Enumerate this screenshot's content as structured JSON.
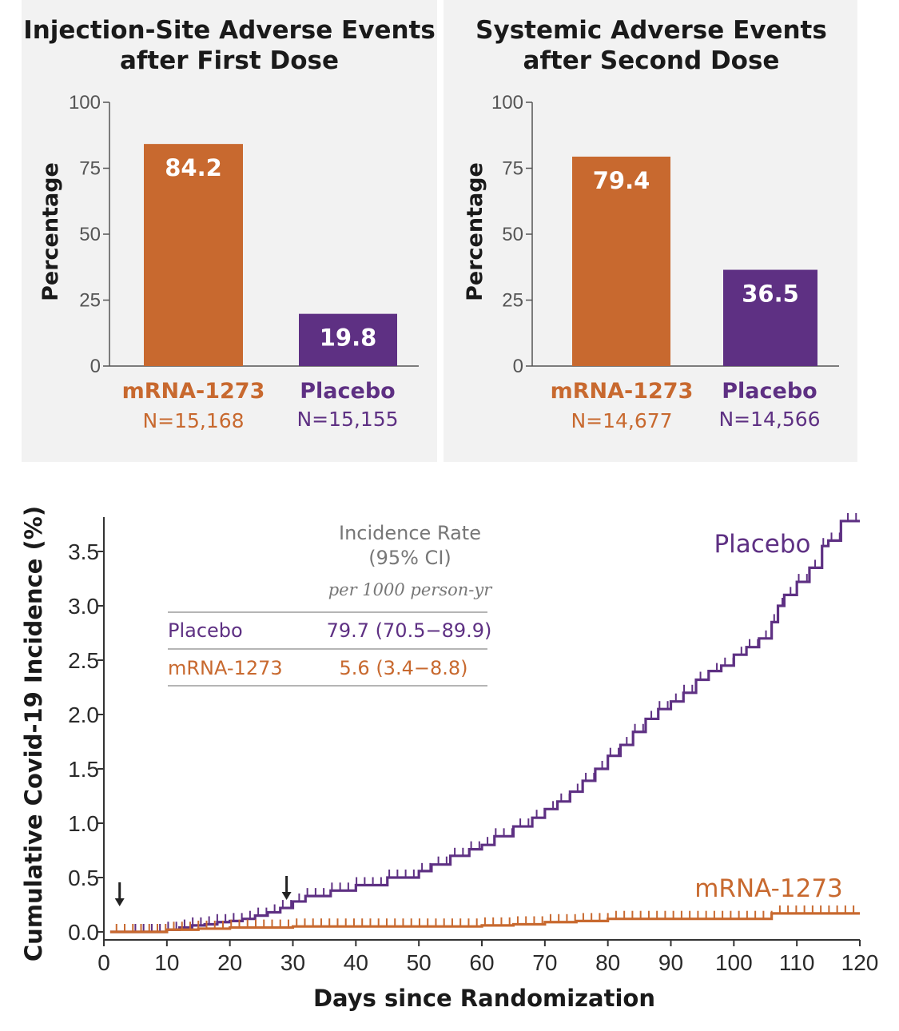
{
  "colors": {
    "mrna": "#c8692f",
    "placebo": "#5e3083",
    "panel_bg": "#f2f2f2",
    "axis": "#555555"
  },
  "chart_data": [
    {
      "type": "bar",
      "title": "Injection-Site Adverse Events after First Dose",
      "title_lines": [
        "Injection-Site Adverse Events",
        "after First Dose"
      ],
      "ylabel": "Percentage",
      "ylim": [
        0,
        100
      ],
      "yticks": [
        "100",
        "75",
        "50",
        "25",
        "0"
      ],
      "categories": [
        "mRNA-1273",
        "Placebo"
      ],
      "values": [
        84.2,
        19.8
      ],
      "value_labels": [
        "84.2",
        "19.8"
      ],
      "n_labels": [
        "N=15,168",
        "N=15,155"
      ]
    },
    {
      "type": "bar",
      "title": "Systemic Adverse Events after Second Dose",
      "title_lines": [
        "Systemic Adverse Events",
        "after Second Dose"
      ],
      "ylabel": "Percentage",
      "ylim": [
        0,
        100
      ],
      "yticks": [
        "100",
        "75",
        "50",
        "25",
        "0"
      ],
      "categories": [
        "mRNA-1273",
        "Placebo"
      ],
      "values": [
        79.4,
        36.5
      ],
      "value_labels": [
        "79.4",
        "36.5"
      ],
      "n_labels": [
        "N=14,677",
        "N=14,566"
      ]
    },
    {
      "type": "line",
      "ylabel": "Cumulative Covid-19 Incidence (%)",
      "xlabel": "Days since Randomization",
      "xlim": [
        0,
        120
      ],
      "ylim": [
        0,
        3.85
      ],
      "xticks": [
        "0",
        "10",
        "20",
        "30",
        "40",
        "50",
        "60",
        "70",
        "80",
        "90",
        "100",
        "110",
        "120"
      ],
      "yticks": [
        "0.0",
        "0.5",
        "1.0",
        "1.5",
        "2.0",
        "2.5",
        "3.0",
        "3.5"
      ],
      "annotations": [
        {
          "type": "arrow",
          "x": 2.5,
          "label": ""
        },
        {
          "type": "arrow",
          "x": 29,
          "label": ""
        }
      ],
      "series": [
        {
          "name": "Placebo",
          "x": [
            1,
            8,
            10,
            12,
            14,
            16,
            18,
            20,
            22,
            24,
            26,
            28,
            30,
            32,
            36,
            40,
            45,
            50,
            52,
            55,
            58,
            60,
            62,
            65,
            68,
            70,
            72,
            74,
            76,
            78,
            80,
            82,
            84,
            86,
            88,
            90,
            92,
            94,
            96,
            98,
            100,
            102,
            104,
            106,
            107,
            108,
            110,
            112,
            114,
            115,
            117,
            120
          ],
          "y": [
            0.0,
            0.0,
            0.02,
            0.04,
            0.06,
            0.07,
            0.09,
            0.1,
            0.12,
            0.15,
            0.18,
            0.22,
            0.28,
            0.33,
            0.38,
            0.43,
            0.5,
            0.56,
            0.62,
            0.7,
            0.76,
            0.8,
            0.88,
            0.97,
            1.05,
            1.13,
            1.2,
            1.29,
            1.39,
            1.5,
            1.62,
            1.72,
            1.84,
            1.96,
            2.05,
            2.12,
            2.2,
            2.32,
            2.4,
            2.45,
            2.55,
            2.62,
            2.7,
            2.85,
            3.0,
            3.1,
            3.22,
            3.35,
            3.55,
            3.6,
            3.78,
            3.78
          ]
        },
        {
          "name": "mRNA-1273",
          "x": [
            1,
            6,
            10,
            15,
            20,
            25,
            30,
            40,
            50,
            60,
            65,
            70,
            75,
            80,
            90,
            98,
            106,
            107,
            120
          ],
          "y": [
            0.0,
            0.0,
            0.02,
            0.03,
            0.04,
            0.04,
            0.05,
            0.05,
            0.05,
            0.06,
            0.07,
            0.09,
            0.1,
            0.12,
            0.12,
            0.12,
            0.17,
            0.17,
            0.17
          ]
        }
      ],
      "series_labels": {
        "placebo": "Placebo",
        "mrna": "mRNA-1273"
      },
      "table": {
        "header": [
          "Incidence Rate",
          "(95% CI)"
        ],
        "subheader": "per 1000 person-yr",
        "rows": [
          {
            "name": "Placebo",
            "value": "79.7 (70.5−89.9)"
          },
          {
            "name": "mRNA-1273",
            "value": "5.6 (3.4−8.8)"
          }
        ]
      }
    }
  ]
}
